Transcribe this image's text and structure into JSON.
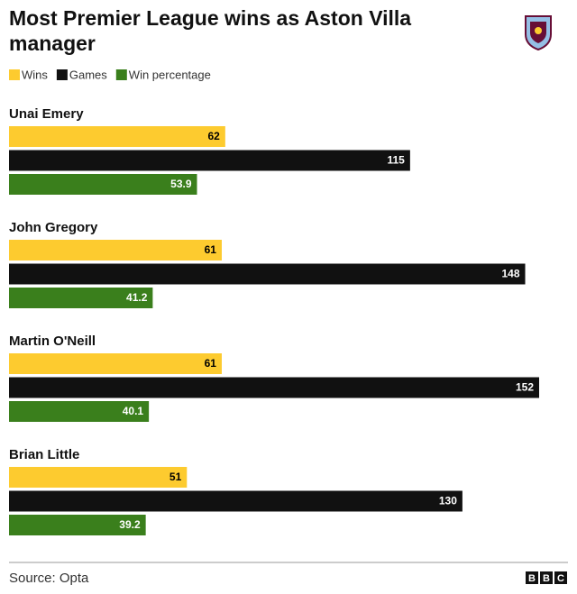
{
  "chart_data": {
    "type": "bar",
    "orientation": "horizontal",
    "title": "Most Premier League wins as Aston Villa manager",
    "categories": [
      "Unai Emery",
      "John Gregory",
      "Martin O'Neill",
      "Brian Little"
    ],
    "series": [
      {
        "name": "Wins",
        "color": "#fdcb2f",
        "label_color": "#000000",
        "values": [
          62,
          61,
          61,
          51
        ]
      },
      {
        "name": "Games",
        "color": "#111111",
        "label_color": "#ffffff",
        "values": [
          115,
          148,
          152,
          130
        ]
      },
      {
        "name": "Win percentage",
        "color": "#3a7f1c",
        "label_color": "#ffffff",
        "values": [
          53.9,
          41.2,
          40.1,
          39.2
        ]
      }
    ],
    "source": "Source: Opta",
    "branding": [
      "B",
      "B",
      "C"
    ]
  }
}
